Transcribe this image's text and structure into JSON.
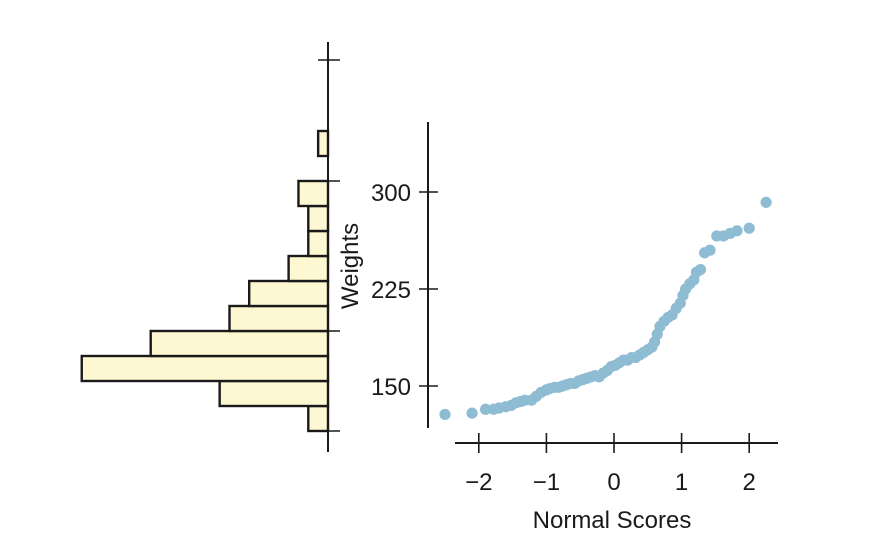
{
  "chart_data": [
    {
      "type": "histogram",
      "orientation": "horizontal",
      "title": "",
      "ylabel": "Weights",
      "bins": [
        {
          "from": 120,
          "to": 140,
          "count": 1
        },
        {
          "from": 140,
          "to": 160,
          "count": 5.5
        },
        {
          "from": 160,
          "to": 180,
          "count": 12.5
        },
        {
          "from": 180,
          "to": 200,
          "count": 9
        },
        {
          "from": 200,
          "to": 220,
          "count": 5
        },
        {
          "from": 220,
          "to": 240,
          "count": 4
        },
        {
          "from": 240,
          "to": 260,
          "count": 2
        },
        {
          "from": 260,
          "to": 280,
          "count": 1
        },
        {
          "from": 280,
          "to": 300,
          "count": 1
        },
        {
          "from": 300,
          "to": 320,
          "count": 1.5
        },
        {
          "from": 340,
          "to": 360,
          "count": 0.5
        }
      ],
      "ylim": [
        120,
        370
      ],
      "count_max": 13,
      "grid": false
    },
    {
      "type": "scatter",
      "title": "",
      "xlabel": "Normal Scores",
      "ylabel": "Weights",
      "xlim": [
        -2.5,
        2.5
      ],
      "ylim": [
        120,
        370
      ],
      "xticks": [
        -2,
        -1,
        0,
        1,
        2
      ],
      "xtick_labels": [
        "−2",
        "−1",
        "0",
        "1",
        "2"
      ],
      "yticks": [
        150,
        225,
        300
      ],
      "ytick_labels": [
        "150",
        "225",
        "300"
      ],
      "grid": false,
      "points": [
        [
          -2.5,
          128
        ],
        [
          -2.1,
          129
        ],
        [
          -1.9,
          132
        ],
        [
          -1.78,
          132
        ],
        [
          -1.7,
          133
        ],
        [
          -1.6,
          134
        ],
        [
          -1.52,
          135
        ],
        [
          -1.45,
          137
        ],
        [
          -1.38,
          138
        ],
        [
          -1.32,
          139
        ],
        [
          -1.22,
          139
        ],
        [
          -1.15,
          142
        ],
        [
          -1.08,
          145
        ],
        [
          -1.0,
          147
        ],
        [
          -0.95,
          148
        ],
        [
          -0.88,
          149
        ],
        [
          -0.82,
          149
        ],
        [
          -0.76,
          150
        ],
        [
          -0.7,
          151
        ],
        [
          -0.64,
          152
        ],
        [
          -0.58,
          152
        ],
        [
          -0.52,
          154
        ],
        [
          -0.46,
          155
        ],
        [
          -0.4,
          156
        ],
        [
          -0.34,
          157
        ],
        [
          -0.28,
          158
        ],
        [
          -0.22,
          157
        ],
        [
          -0.16,
          160
        ],
        [
          -0.1,
          162
        ],
        [
          -0.04,
          165
        ],
        [
          0.02,
          166
        ],
        [
          0.08,
          168
        ],
        [
          0.14,
          170
        ],
        [
          0.2,
          170
        ],
        [
          0.26,
          172
        ],
        [
          0.32,
          172
        ],
        [
          0.38,
          174
        ],
        [
          0.44,
          176
        ],
        [
          0.5,
          178
        ],
        [
          0.56,
          180
        ],
        [
          0.6,
          184
        ],
        [
          0.64,
          190
        ],
        [
          0.68,
          196
        ],
        [
          0.74,
          200
        ],
        [
          0.8,
          203
        ],
        [
          0.86,
          205
        ],
        [
          0.92,
          210
        ],
        [
          0.98,
          214
        ],
        [
          1.02,
          220
        ],
        [
          1.06,
          225
        ],
        [
          1.12,
          229
        ],
        [
          1.18,
          232
        ],
        [
          1.22,
          238
        ],
        [
          1.28,
          240
        ],
        [
          1.34,
          253
        ],
        [
          1.42,
          255
        ],
        [
          1.52,
          266
        ],
        [
          1.62,
          266
        ],
        [
          1.72,
          268
        ],
        [
          1.82,
          270
        ],
        [
          2.0,
          272
        ],
        [
          2.25,
          292
        ]
      ]
    }
  ]
}
